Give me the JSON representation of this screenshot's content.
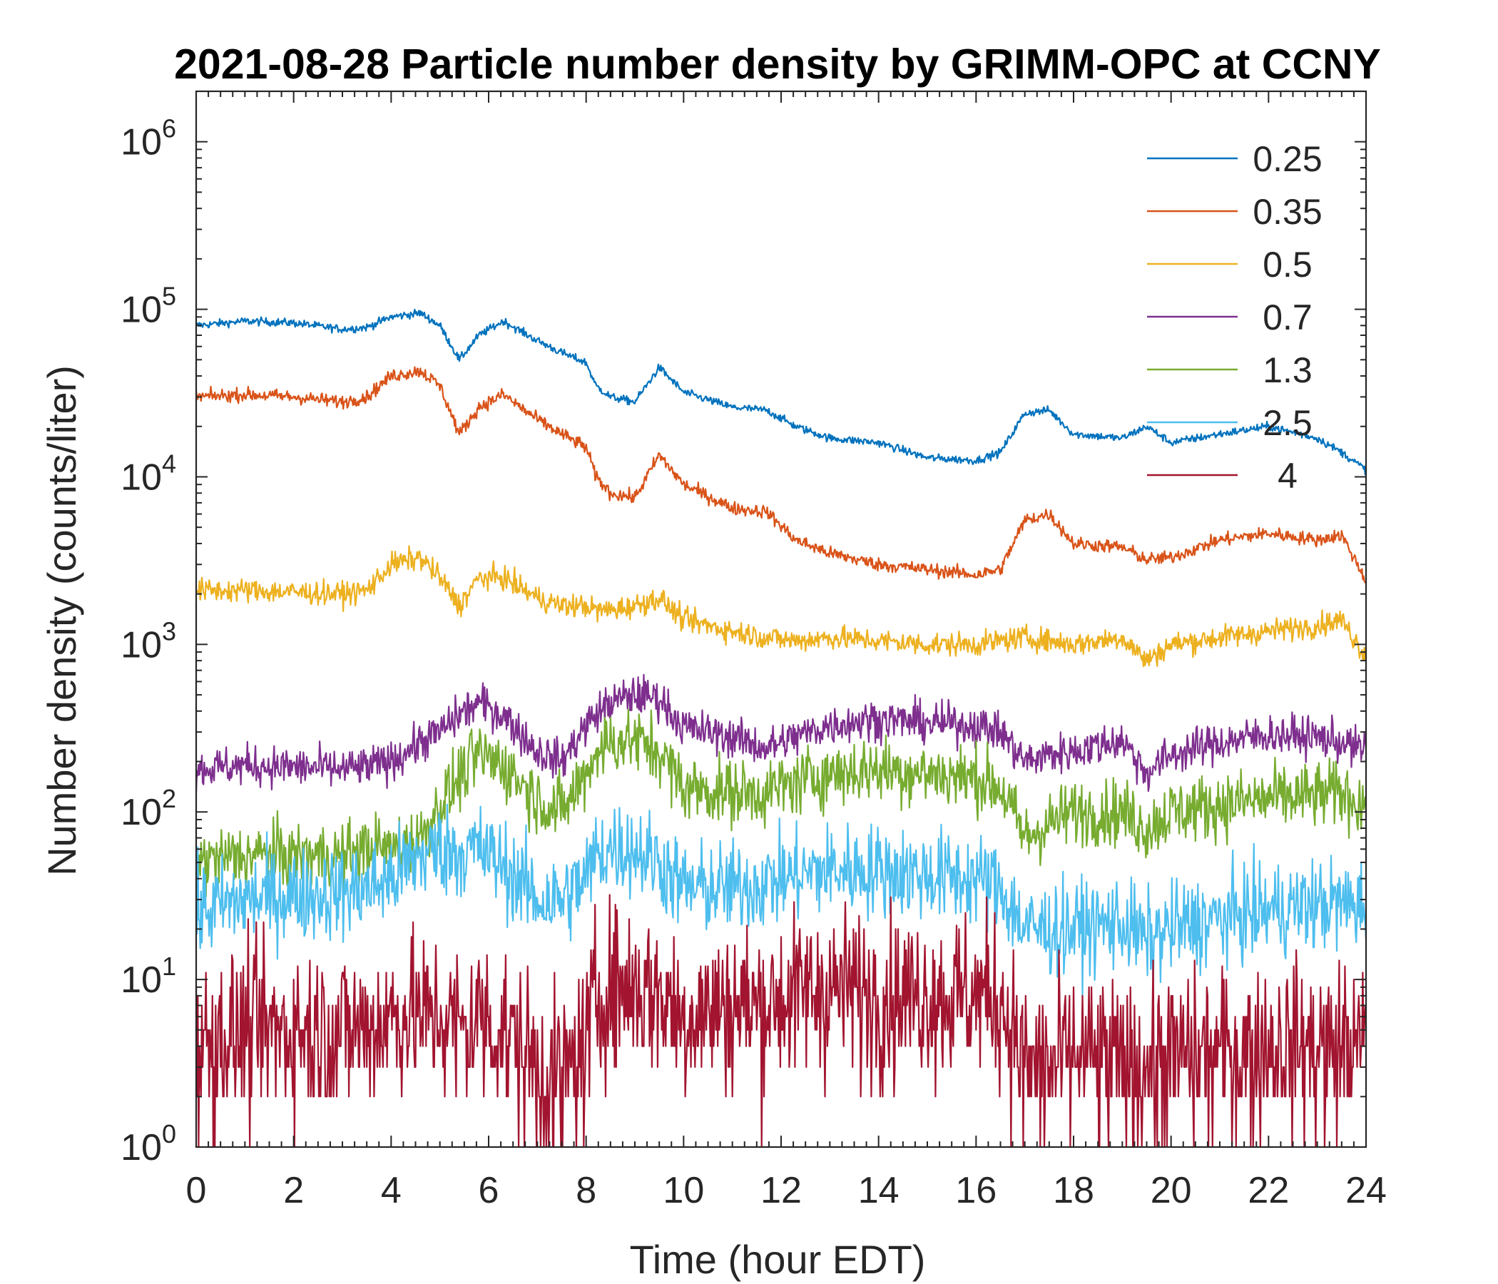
{
  "chart_data": {
    "type": "line",
    "title": "2021-08-28 Particle number density by GRIMM-OPC at CCNY",
    "xlabel": "Time (hour EDT)",
    "ylabel": "Number density (counts/liter)",
    "xscale": "linear",
    "yscale": "log",
    "xlim": [
      0,
      24
    ],
    "ylim": [
      1,
      2000000
    ],
    "xticks": [
      0,
      2,
      4,
      6,
      8,
      10,
      12,
      14,
      16,
      18,
      20,
      22,
      24
    ],
    "xtick_labels": [
      "0",
      "2",
      "4",
      "6",
      "8",
      "10",
      "12",
      "14",
      "16",
      "18",
      "20",
      "22",
      "24"
    ],
    "yticks": [
      1,
      10,
      100,
      1000,
      10000,
      100000,
      1000000
    ],
    "ytick_labels": [
      {
        "base": "10",
        "exp": "0"
      },
      {
        "base": "10",
        "exp": "1"
      },
      {
        "base": "10",
        "exp": "2"
      },
      {
        "base": "10",
        "exp": "3"
      },
      {
        "base": "10",
        "exp": "4"
      },
      {
        "base": "10",
        "exp": "5"
      },
      {
        "base": "10",
        "exp": "6"
      }
    ],
    "grid": false,
    "legend_position": "top-right",
    "x_hours": [
      0,
      1,
      2,
      3,
      3.5,
      4,
      4.6,
      5,
      5.4,
      5.8,
      6.3,
      7,
      7.5,
      8,
      8.2,
      8.5,
      9,
      9.5,
      10,
      11,
      11.7,
      12.3,
      13,
      14,
      15,
      16,
      16.5,
      17,
      17.5,
      18,
      19,
      19.5,
      20,
      21,
      22,
      23,
      23.5,
      24
    ],
    "series": [
      {
        "name": "0.25",
        "color": "#0072BD",
        "noise": 0.012,
        "values": [
          80000,
          85000,
          83000,
          76000,
          78000,
          90000,
          95000,
          80000,
          50000,
          70000,
          85000,
          65000,
          55000,
          48000,
          35000,
          30000,
          28000,
          45000,
          32000,
          26000,
          25000,
          20000,
          17000,
          16000,
          13000,
          12500,
          14000,
          24000,
          25000,
          18000,
          17000,
          20000,
          16000,
          18000,
          20000,
          17000,
          14000,
          11000
        ]
      },
      {
        "name": "0.35",
        "color": "#D95319",
        "noise": 0.02,
        "values": [
          30000,
          31000,
          30000,
          28000,
          30000,
          40000,
          43000,
          35000,
          18000,
          26000,
          31000,
          22000,
          18000,
          15000,
          10000,
          8000,
          7500,
          13500,
          9000,
          6500,
          6200,
          4200,
          3500,
          3000,
          2800,
          2600,
          2800,
          5500,
          6000,
          4000,
          3800,
          3200,
          3300,
          4200,
          4600,
          4200,
          4500,
          2400
        ]
      },
      {
        "name": "0.5",
        "color": "#EDB120",
        "noise": 0.035,
        "values": [
          2100,
          2100,
          2050,
          2000,
          2100,
          3000,
          3300,
          2500,
          1700,
          2500,
          2500,
          1900,
          1700,
          1700,
          1600,
          1600,
          1700,
          1900,
          1400,
          1200,
          1100,
          1050,
          1100,
          1050,
          1000,
          1000,
          1050,
          1100,
          1050,
          1000,
          1100,
          800,
          1000,
          1100,
          1200,
          1300,
          1400,
          850
        ]
      },
      {
        "name": "0.7",
        "color": "#7E2F8E",
        "noise": 0.06,
        "values": [
          180,
          190,
          185,
          180,
          185,
          200,
          260,
          300,
          380,
          450,
          380,
          230,
          200,
          330,
          380,
          450,
          500,
          480,
          320,
          280,
          240,
          280,
          330,
          360,
          340,
          330,
          300,
          200,
          220,
          230,
          270,
          170,
          220,
          260,
          290,
          280,
          260,
          230
        ]
      },
      {
        "name": "1.3",
        "color": "#77AC30",
        "noise": 0.1,
        "values": [
          50,
          55,
          55,
          55,
          60,
          60,
          70,
          110,
          160,
          220,
          190,
          120,
          100,
          170,
          230,
          260,
          270,
          230,
          140,
          130,
          130,
          150,
          170,
          180,
          170,
          160,
          140,
          70,
          85,
          100,
          100,
          80,
          100,
          110,
          120,
          125,
          130,
          110
        ]
      },
      {
        "name": "2.5",
        "color": "#4DBEEE",
        "noise": 0.14,
        "values": [
          25,
          30,
          32,
          33,
          35,
          40,
          55,
          60,
          58,
          60,
          48,
          30,
          30,
          40,
          55,
          62,
          60,
          50,
          35,
          35,
          38,
          42,
          45,
          45,
          42,
          40,
          35,
          20,
          20,
          20,
          22,
          17,
          20,
          23,
          26,
          28,
          28,
          28
        ]
      },
      {
        "name": "4",
        "color": "#A2142F",
        "noise": 0.25,
        "values": [
          4,
          5,
          5,
          5,
          5,
          6,
          6,
          6,
          5,
          6,
          5,
          3,
          2.5,
          4,
          8,
          9,
          9,
          8,
          6,
          7,
          7,
          8,
          9,
          8,
          8,
          8,
          8,
          3,
          3,
          3.5,
          3,
          3,
          3.5,
          3.5,
          4,
          4,
          4,
          4
        ]
      }
    ]
  }
}
